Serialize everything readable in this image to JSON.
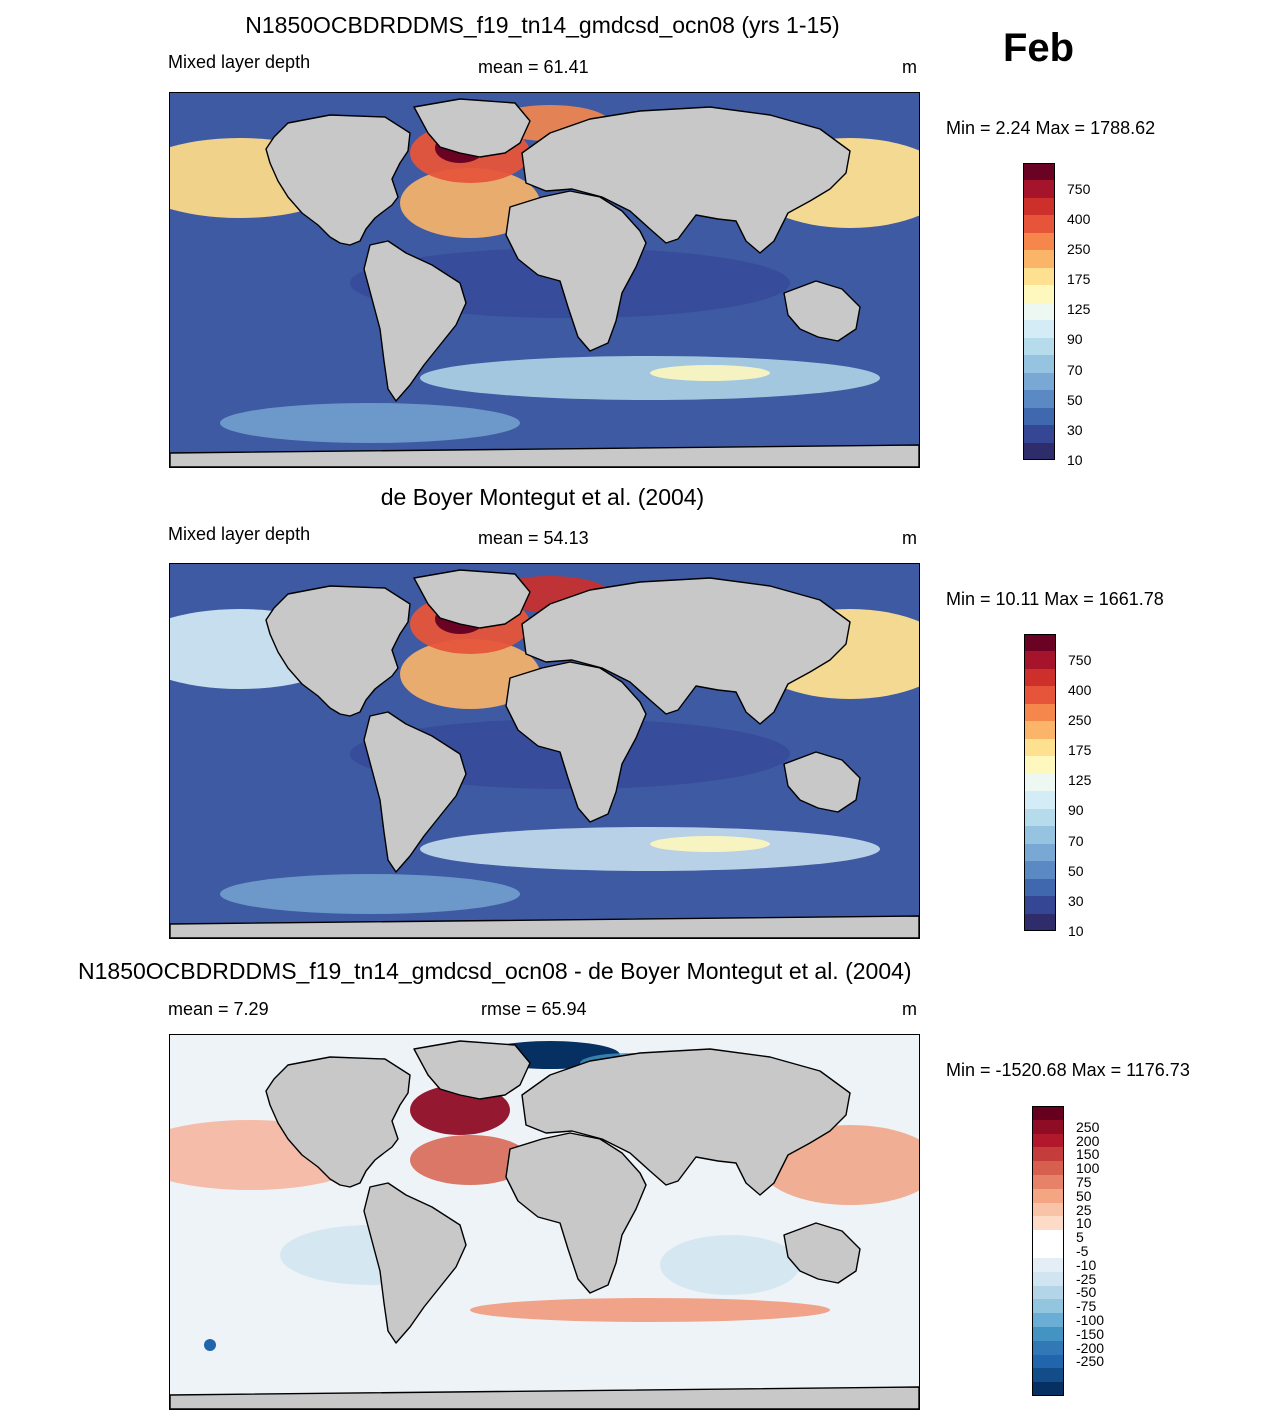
{
  "month": "Feb",
  "panels": [
    {
      "title": "N1850OCBDRDDMS_f19_tn14_gmdcsd_ocn08 (yrs 1-15)",
      "left_label": "Mixed layer depth",
      "center_label": "mean =  61.41",
      "units": "m",
      "minmax": "Min =   2.24 Max = 1788.62",
      "colorbar": {
        "labels": [
          "750",
          "400",
          "250",
          "175",
          "125",
          "90",
          "70",
          "50",
          "30",
          "10"
        ],
        "colors": [
          "#6a0224",
          "#a5142a",
          "#cd2f2b",
          "#e6553a",
          "#f5874d",
          "#fbb568",
          "#fde090",
          "#fef7be",
          "#eef8f3",
          "#d3ecf5",
          "#b6dbeb",
          "#96c4e0",
          "#78a8d3",
          "#5a89c3",
          "#4068ae",
          "#354695",
          "#2f2c6b"
        ]
      }
    },
    {
      "title": "de Boyer Montegut et al. (2004)",
      "left_label": "Mixed layer depth",
      "center_label": "mean =  54.13",
      "units": "m",
      "minmax": "Min =  10.11 Max = 1661.78",
      "colorbar": {
        "labels": [
          "750",
          "400",
          "250",
          "175",
          "125",
          "90",
          "70",
          "50",
          "30",
          "10"
        ],
        "colors": [
          "#6a0224",
          "#a5142a",
          "#cd2f2b",
          "#e6553a",
          "#f5874d",
          "#fbb568",
          "#fde090",
          "#fef7be",
          "#eef8f3",
          "#d3ecf5",
          "#b6dbeb",
          "#96c4e0",
          "#78a8d3",
          "#5a89c3",
          "#4068ae",
          "#354695",
          "#2f2c6b"
        ]
      }
    },
    {
      "title": "N1850OCBDRDDMS_f19_tn14_gmdcsd_ocn08 - de Boyer Montegut et al. (2004)",
      "left_label": "mean =   7.29",
      "center_label": "rmse =  65.94",
      "units": "m",
      "minmax": "Min = -1520.68 Max = 1176.73",
      "colorbar": {
        "labels": [
          "250",
          "200",
          "150",
          "100",
          "75",
          "50",
          "25",
          "10",
          "5",
          "-5",
          "-10",
          "-25",
          "-50",
          "-75",
          "-100",
          "-150",
          "-200",
          "-250"
        ],
        "colors": [
          "#67001f",
          "#8e0d25",
          "#b2182b",
          "#c43c3c",
          "#d6604d",
          "#e58267",
          "#f4a582",
          "#f8c3a7",
          "#fddbc7",
          "#ffffff",
          "#ffffff",
          "#e3eef7",
          "#d1e5f0",
          "#b4d5e8",
          "#92c5de",
          "#6aaed6",
          "#4393c3",
          "#3179b6",
          "#2166ac",
          "#124d8a",
          "#053061"
        ]
      }
    }
  ]
}
